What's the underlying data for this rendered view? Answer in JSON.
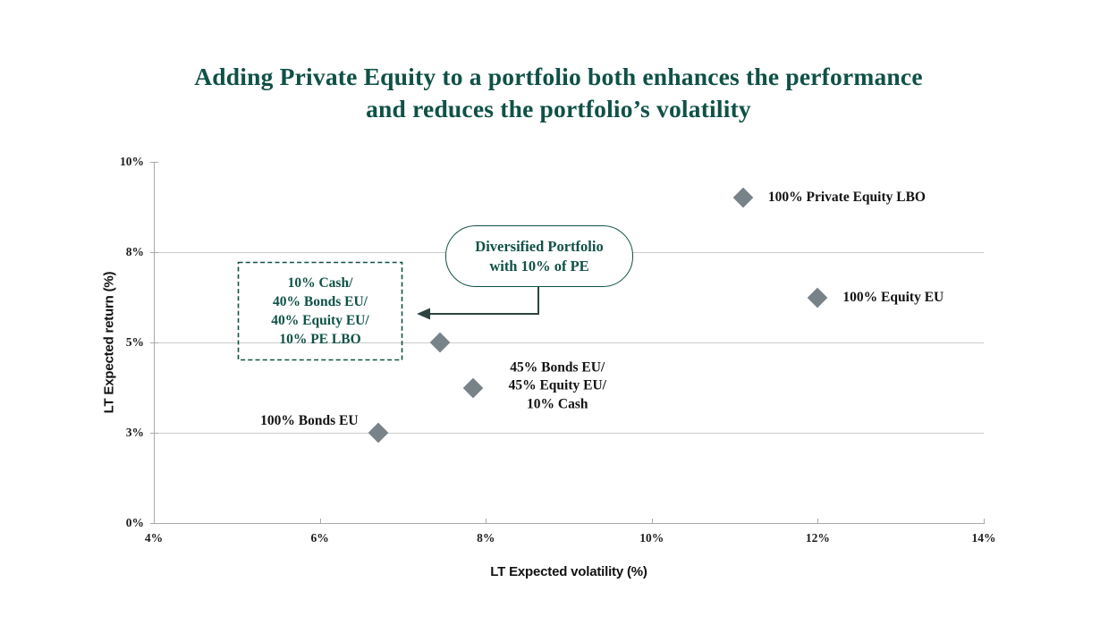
{
  "title": {
    "line1": "Adding Private Equity to a portfolio both enhances the performance",
    "line2": "and reduces the portfolio’s volatility"
  },
  "chart_data": {
    "type": "scatter",
    "title": "Adding Private Equity to a portfolio both enhances the performance and reduces the portfolio’s volatility",
    "xlabel": "LT Expected volatility (%)",
    "ylabel": "LT Expected return (%)",
    "x_ticks": [
      "4%",
      "6%",
      "8%",
      "10%",
      "12%",
      "14%"
    ],
    "x_tick_values": [
      4,
      6,
      8,
      10,
      12,
      14
    ],
    "y_ticks": [
      "10%",
      "8%",
      "5%",
      "3%",
      "0%"
    ],
    "y_tick_values": [
      10,
      8,
      5,
      3,
      0
    ],
    "xlim": [
      4,
      14
    ],
    "ylim": [
      0,
      10
    ],
    "grid": "horizontal gridlines at 8%, 5%, 3%; no vertical gridlines",
    "legend": "none",
    "marker": {
      "shape": "diamond",
      "color": "#788289"
    },
    "points": [
      {
        "id": "pe_lbo",
        "x": 11.1,
        "y": 9.2,
        "label_lines": [
          "100% Private Equity LBO"
        ]
      },
      {
        "id": "equity_eu",
        "x": 12.0,
        "y": 6.5,
        "label_lines": [
          "100% Equity EU"
        ]
      },
      {
        "id": "diversified",
        "x": 7.45,
        "y": 5.0,
        "label_lines": []
      },
      {
        "id": "balanced",
        "x": 7.85,
        "y": 4.0,
        "label_lines": [
          "45% Bonds EU/",
          "45% Equity EU/",
          "10% Cash"
        ]
      },
      {
        "id": "bonds_eu",
        "x": 6.7,
        "y": 3.0,
        "label_lines": [
          "100% Bonds EU"
        ]
      }
    ],
    "annotations": {
      "dashed_box": {
        "lines": [
          "10% Cash/",
          "40% Bonds EU/",
          "40% Equity EU/",
          "10% PE LBO"
        ],
        "points_to": "diversified"
      },
      "callout": {
        "lines": [
          "Diversified Portfolio",
          "with 10% of PE"
        ],
        "points_to": "dashed_box"
      }
    }
  },
  "colors": {
    "teal": "#0F5147",
    "marker_gray": "#788289",
    "gridline": "#CBCBCB",
    "axis": "#A9A9A9",
    "arrow": "#2E433F",
    "label_black": "#121212",
    "background": "#FFFFFF"
  }
}
